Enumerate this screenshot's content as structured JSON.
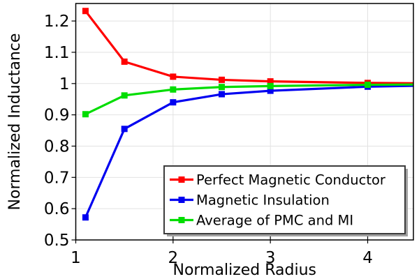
{
  "chart_data": {
    "type": "line",
    "title": "",
    "xlabel": "Normalized Radius",
    "ylabel": "Normalized Inductance",
    "x": [
      1.1,
      1.5,
      2,
      2.5,
      3,
      4,
      4.5
    ],
    "series": [
      {
        "name": "Perfect Magnetic Conductor",
        "color": "#ff0000",
        "marker": "square",
        "values": [
          1.232,
          1.07,
          1.022,
          1.012,
          1.007,
          1.002,
          1.001
        ]
      },
      {
        "name": "Magnetic Insulation",
        "color": "#0000f0",
        "marker": "square",
        "values": [
          0.572,
          0.855,
          0.94,
          0.966,
          0.977,
          0.99,
          0.993
        ]
      },
      {
        "name": "Average of PMC and MI",
        "color": "#00dd00",
        "marker": "square",
        "values": [
          0.902,
          0.962,
          0.981,
          0.989,
          0.992,
          0.996,
          0.997
        ]
      }
    ],
    "xlim": [
      1,
      4.47
    ],
    "ylim": [
      0.5,
      1.256
    ],
    "xticks": [
      1,
      2,
      3,
      4
    ],
    "yticks": [
      0.5,
      0.6,
      0.7,
      0.8,
      0.9,
      1,
      1.1,
      1.2
    ],
    "xtick_labels": [
      "1",
      "2",
      "3",
      "4"
    ],
    "ytick_labels": [
      "0.5",
      "0.6",
      "0.7",
      "0.8",
      "0.9",
      "1",
      "1.1",
      "1.2"
    ],
    "grid": true,
    "legend": {
      "position": "inside-bottom-right",
      "background": "#ffffff",
      "border_color": "#3c3c3c",
      "shadow_color": "#a0a0a0"
    },
    "style": {
      "grid_color": "#e2e2e2",
      "axis_color": "#000000",
      "line_width": 3.2,
      "marker_size": 9
    }
  }
}
